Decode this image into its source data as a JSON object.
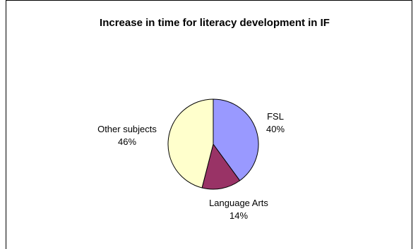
{
  "chart_data": {
    "type": "pie",
    "title": "Increase in time for literacy development in IF",
    "slices": [
      {
        "label": "FSL",
        "value": 40,
        "percent_label": "40%",
        "color": "#9999FF"
      },
      {
        "label": "Language Arts",
        "value": 14,
        "percent_label": "14%",
        "color": "#993366"
      },
      {
        "label": "Other subjects",
        "value": 46,
        "percent_label": "46%",
        "color": "#FFFFCC"
      }
    ],
    "legend": "none",
    "start_angle_deg": 0,
    "direction": "clockwise"
  }
}
